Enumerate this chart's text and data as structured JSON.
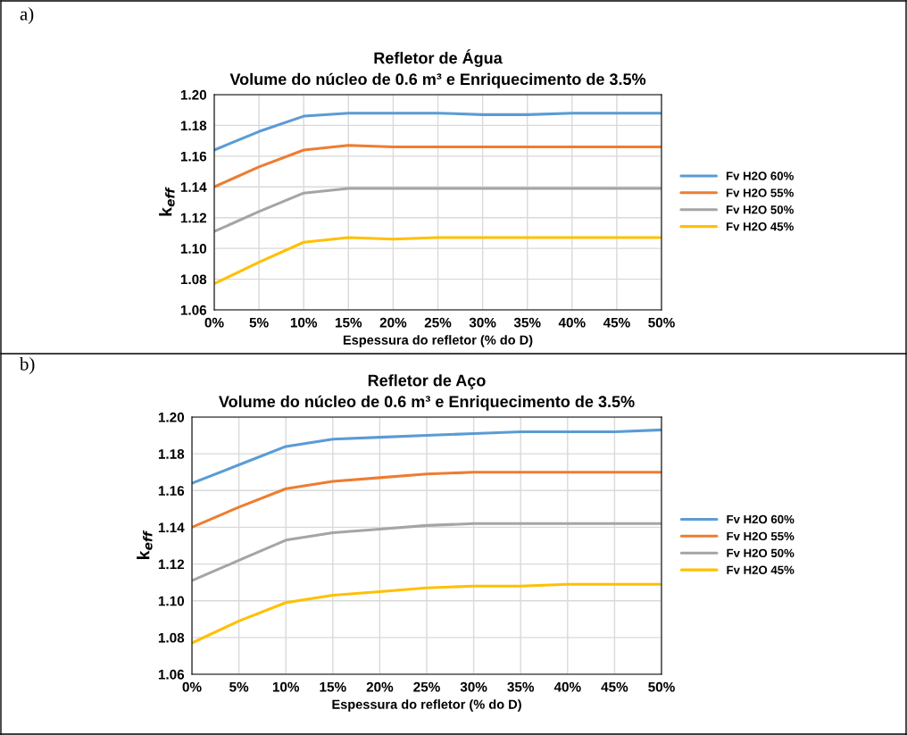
{
  "chart_data": [
    {
      "type": "line",
      "title": "Refletor de Água\nVolume do núcleo de 0.6 m³ e Enriquecimento de 3.5%",
      "xlabel": "Espessura do refletor (% do D)",
      "ylabel": "k$_{eff}$",
      "annotations": [
        "a)"
      ],
      "categories": [
        "0%",
        "5%",
        "10%",
        "15%",
        "20%",
        "25%",
        "30%",
        "35%",
        "40%",
        "45%",
        "50%"
      ],
      "series": [
        {
          "name": "Fv H2O 60%",
          "color": "#5b9bd5",
          "values": [
            1.164,
            1.176,
            1.186,
            1.188,
            1.188,
            1.188,
            1.187,
            1.187,
            1.188,
            1.188,
            1.188
          ]
        },
        {
          "name": "Fv H2O 55%",
          "color": "#ed7d31",
          "values": [
            1.14,
            1.153,
            1.164,
            1.167,
            1.166,
            1.166,
            1.166,
            1.166,
            1.166,
            1.166,
            1.166
          ]
        },
        {
          "name": "Fv H2O 50%",
          "color": "#a5a5a5",
          "values": [
            1.111,
            1.124,
            1.136,
            1.139,
            1.139,
            1.139,
            1.139,
            1.139,
            1.139,
            1.139,
            1.139
          ]
        },
        {
          "name": "Fv H2O 45%",
          "color": "#ffc000",
          "values": [
            1.077,
            1.091,
            1.104,
            1.107,
            1.106,
            1.107,
            1.107,
            1.107,
            1.107,
            1.107,
            1.107
          ]
        }
      ],
      "ylim": [
        1.06,
        1.2
      ],
      "yticks": [
        {
          "value": 1.06,
          "label": "1.06"
        },
        {
          "value": 1.08,
          "label": "1.08"
        },
        {
          "value": 1.1,
          "label": "1.10"
        },
        {
          "value": 1.12,
          "label": "1.12"
        },
        {
          "value": 1.14,
          "label": "1.14"
        },
        {
          "value": 1.16,
          "label": "1.16"
        },
        {
          "value": 1.18,
          "label": "1.18"
        },
        {
          "value": 1.2,
          "label": "1.20"
        }
      ],
      "grid": true,
      "legend": "right",
      "marker": "none",
      "line_style": "solid"
    },
    {
      "type": "line",
      "title": "Refletor de Aço\nVolume do núcleo de 0.6 m³ e Enriquecimento de 3.5%",
      "xlabel": "Espessura do refletor (% do D)",
      "ylabel": "k$_{eff}$",
      "annotations": [
        "b)"
      ],
      "categories": [
        "0%",
        "5%",
        "10%",
        "15%",
        "20%",
        "25%",
        "30%",
        "35%",
        "40%",
        "45%",
        "50%"
      ],
      "series": [
        {
          "name": "Fv H2O 60%",
          "color": "#5b9bd5",
          "values": [
            1.164,
            1.174,
            1.184,
            1.188,
            1.189,
            1.19,
            1.191,
            1.192,
            1.192,
            1.192,
            1.193
          ]
        },
        {
          "name": "Fv H2O 55%",
          "color": "#ed7d31",
          "values": [
            1.14,
            1.151,
            1.161,
            1.165,
            1.167,
            1.169,
            1.17,
            1.17,
            1.17,
            1.17,
            1.17
          ]
        },
        {
          "name": "Fv H2O 50%",
          "color": "#a5a5a5",
          "values": [
            1.111,
            1.122,
            1.133,
            1.137,
            1.139,
            1.141,
            1.142,
            1.142,
            1.142,
            1.142,
            1.142
          ]
        },
        {
          "name": "Fv H2O 45%",
          "color": "#ffc000",
          "values": [
            1.077,
            1.089,
            1.099,
            1.103,
            1.105,
            1.107,
            1.108,
            1.108,
            1.109,
            1.109,
            1.109
          ]
        }
      ],
      "ylim": [
        1.06,
        1.2
      ],
      "yticks": [
        {
          "value": 1.06,
          "label": "1.06"
        },
        {
          "value": 1.08,
          "label": "1.08"
        },
        {
          "value": 1.1,
          "label": "1.10"
        },
        {
          "value": 1.12,
          "label": "1.12"
        },
        {
          "value": 1.14,
          "label": "1.14"
        },
        {
          "value": 1.16,
          "label": "1.16"
        },
        {
          "value": 1.18,
          "label": "1.18"
        },
        {
          "value": 1.2,
          "label": "1.20"
        }
      ],
      "grid": true,
      "legend": "right",
      "marker": "none",
      "line_style": "solid"
    }
  ]
}
